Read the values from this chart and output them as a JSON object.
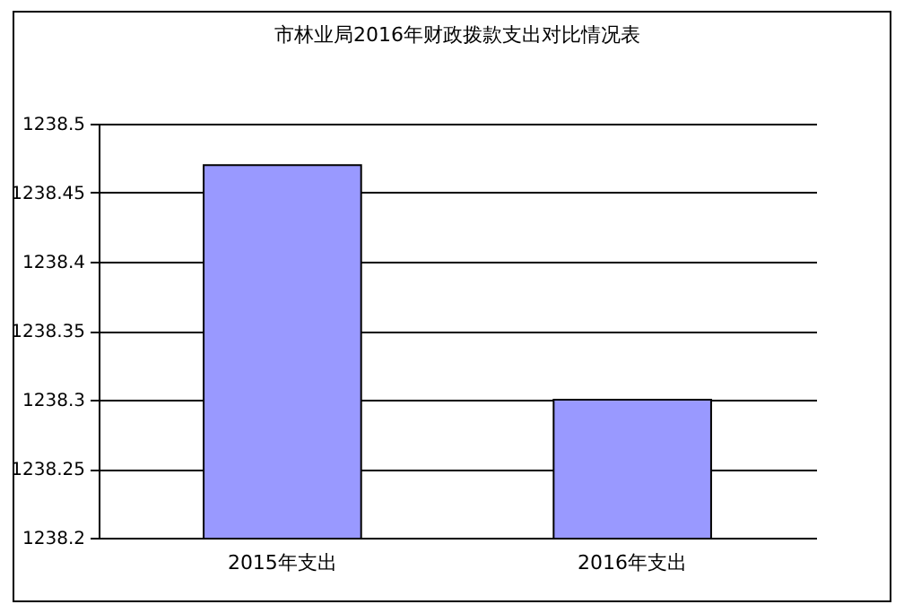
{
  "chart_data": {
    "type": "bar",
    "title": "市林业局2016年财政拨款支出对比情况表",
    "categories": [
      "2015年支出",
      "2016年支出"
    ],
    "values": [
      1238.47,
      1238.3
    ],
    "color": "#9999ff",
    "ylim": [
      1238.2,
      1238.5
    ],
    "yticks": [
      1238.2,
      1238.25,
      1238.3,
      1238.35,
      1238.4,
      1238.45,
      1238.5
    ],
    "grid": "y"
  }
}
